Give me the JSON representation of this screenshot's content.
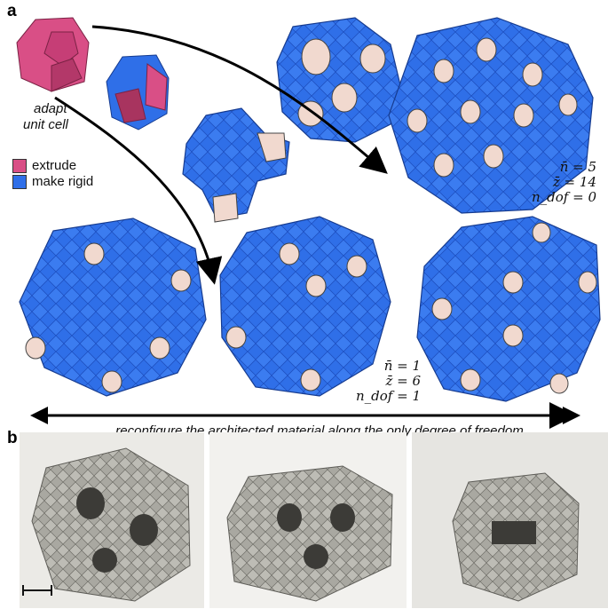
{
  "panel_a_label": "a",
  "panel_b_label": "b",
  "unit_cell_label_line1": "adapt",
  "unit_cell_label_line2": "unit cell",
  "legend": [
    {
      "label": "extrude",
      "color": "#d94f86"
    },
    {
      "label": "make rigid",
      "color": "#2f6fe8"
    }
  ],
  "params_right": {
    "n": "n̄ = 5",
    "z": "z̄ = 14",
    "ndof": "n_dof = 0"
  },
  "params_middle": {
    "n": "n̄ = 1",
    "z": "z̄ = 6",
    "ndof": "n_dof = 1"
  },
  "caption": "reconfigure the architected material along the only degree of freedom",
  "colors": {
    "blue": "#2f6fe8",
    "blue_dark": "#1d4fc0",
    "pink": "#d94f86",
    "pink_dark": "#a8345f",
    "peach": "#f1d9cf",
    "gray_photo": "#9e9d96"
  }
}
